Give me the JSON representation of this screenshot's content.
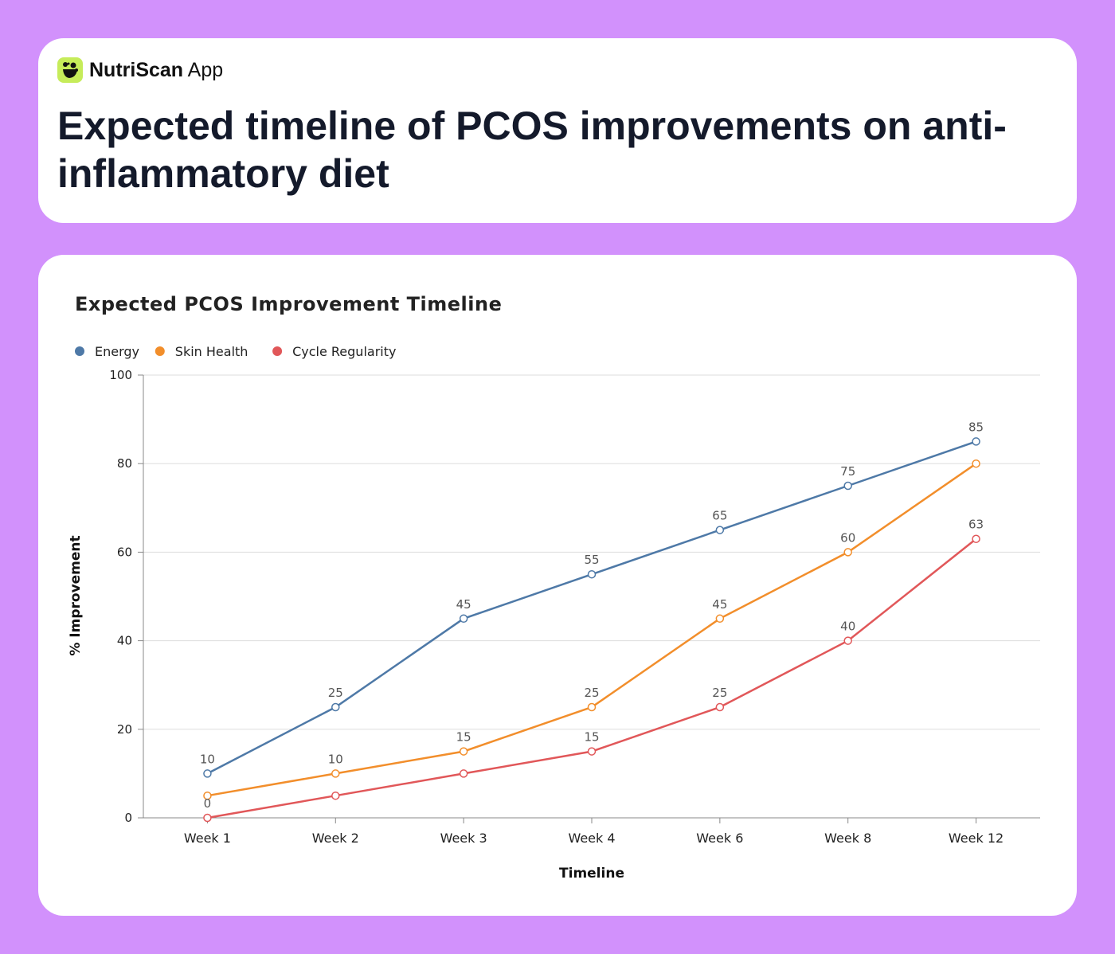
{
  "brand": {
    "name_bold": "NutriScan",
    "name_light": "App",
    "logo_color": "#c6ec5a"
  },
  "header": {
    "title": "Expected timeline of PCOS improvements on anti-inflammatory diet"
  },
  "chart_data": {
    "type": "line",
    "title": "Expected PCOS Improvement Timeline",
    "xlabel": "Timeline",
    "ylabel": "% Improvement",
    "categories": [
      "Week 1",
      "Week 2",
      "Week 3",
      "Week 4",
      "Week 6",
      "Week 8",
      "Week 12"
    ],
    "ylim": [
      0,
      100
    ],
    "yticks": [
      0,
      20,
      40,
      60,
      80,
      100
    ],
    "grid": true,
    "legend_position": "top-left",
    "series": [
      {
        "name": "Energy",
        "color": "#4e79a7",
        "values": [
          10,
          25,
          45,
          55,
          65,
          75,
          85
        ],
        "labels": [
          "10",
          "25",
          "45",
          "55",
          "65",
          "75",
          "85"
        ]
      },
      {
        "name": "Skin Health",
        "color": "#f28e2b",
        "values": [
          5,
          10,
          15,
          25,
          45,
          60,
          80
        ],
        "labels": [
          null,
          "10",
          "15",
          "25",
          "45",
          "60",
          null
        ]
      },
      {
        "name": "Cycle Regularity",
        "color": "#e15759",
        "values": [
          0,
          5,
          10,
          15,
          25,
          40,
          63
        ],
        "labels": [
          "0",
          null,
          null,
          "15",
          "25",
          "40",
          "63"
        ]
      }
    ]
  }
}
